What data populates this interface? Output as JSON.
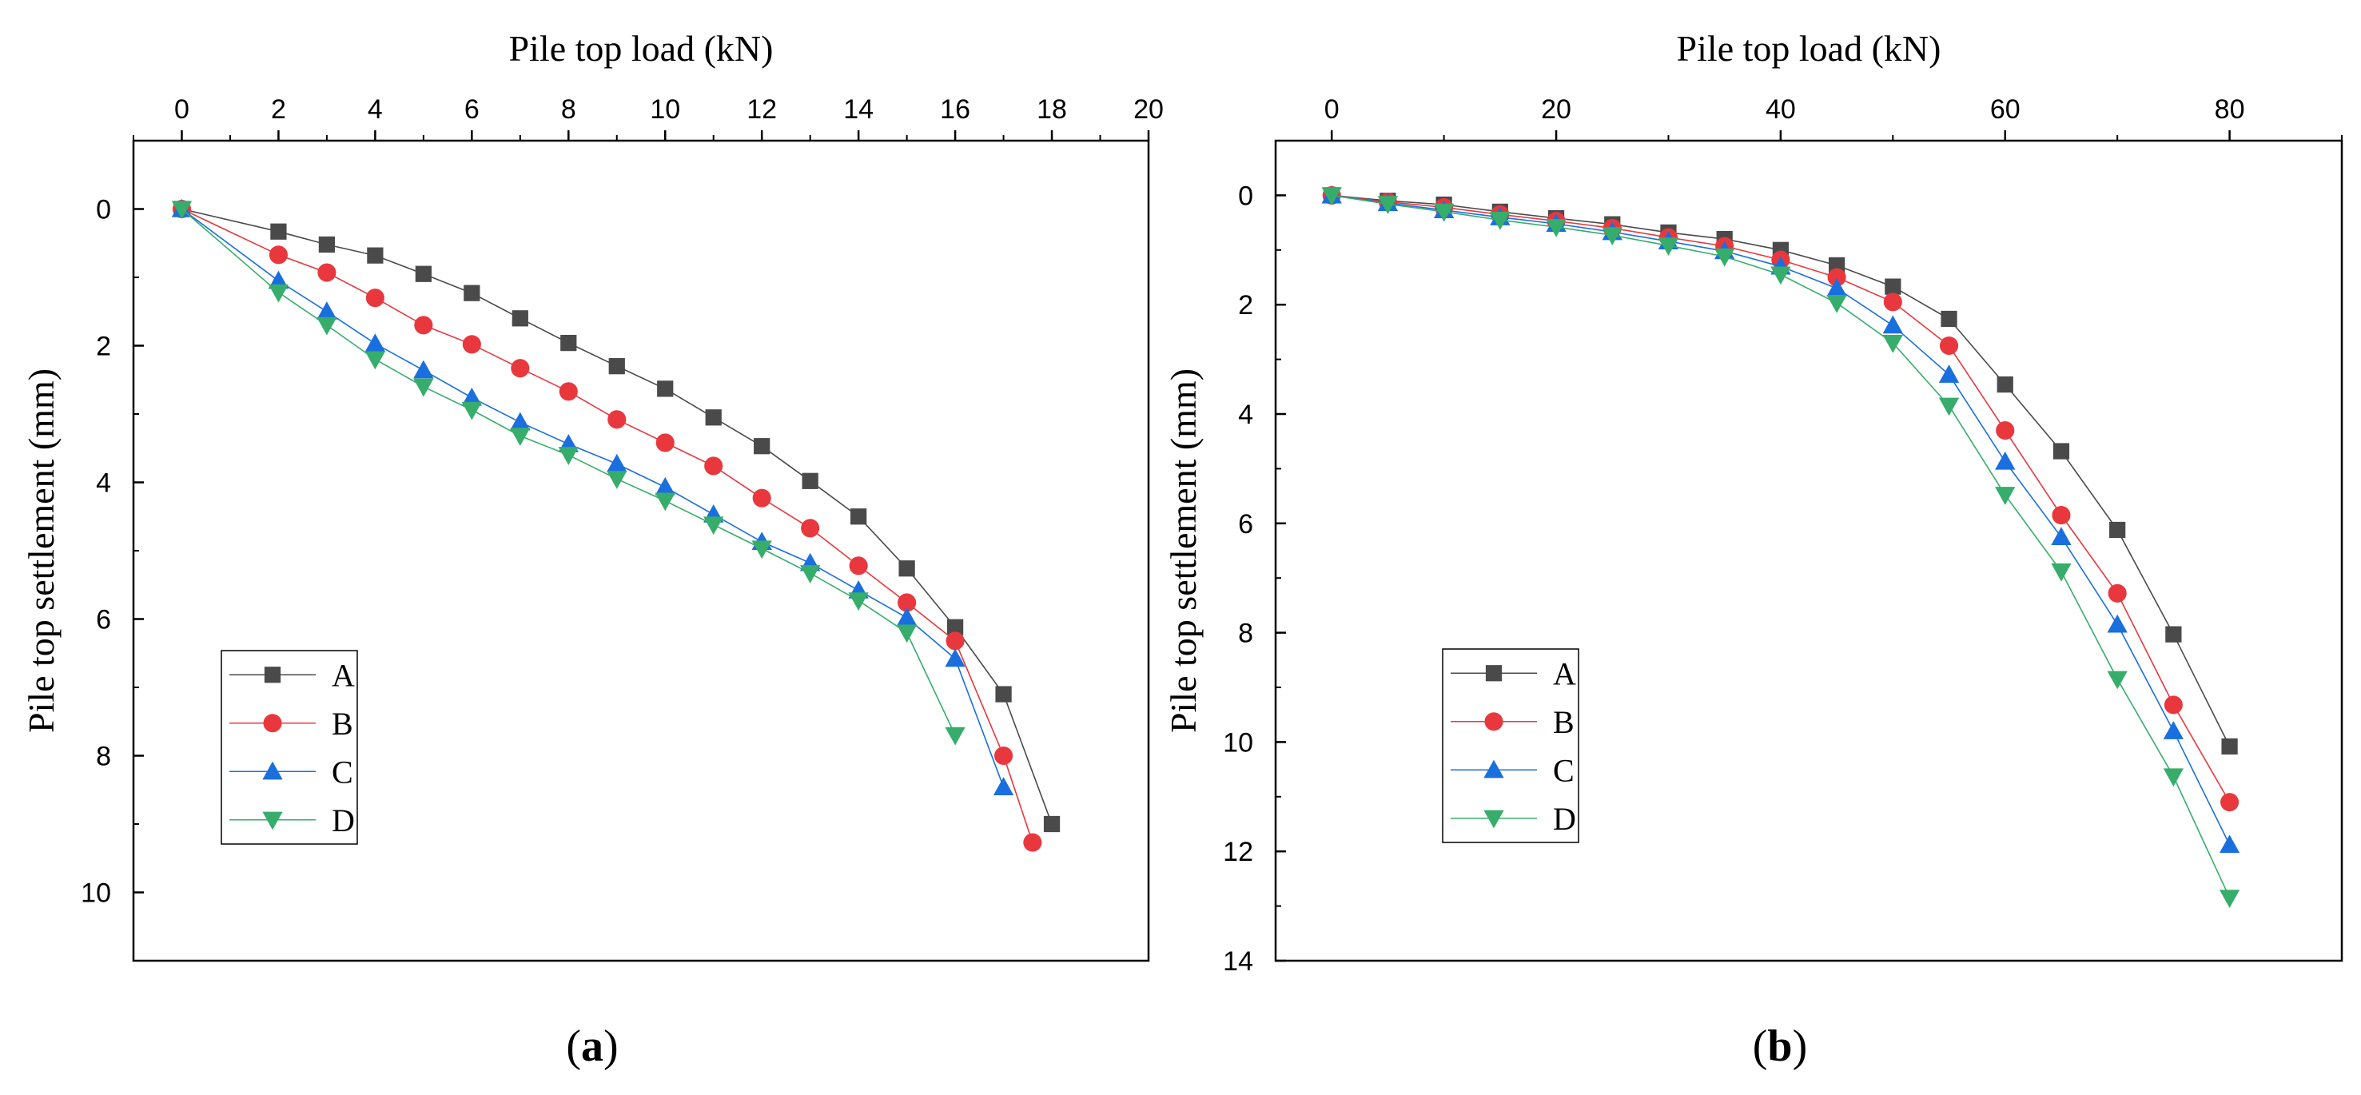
{
  "chart_data": [
    {
      "type": "line",
      "panel_label": "a",
      "xlabel": "Pile top load (kN)",
      "ylabel": "Pile top settlement (mm)",
      "xlim": [
        -1,
        20
      ],
      "ylim": [
        -1,
        11
      ],
      "x_axis_position": "top",
      "y_inverted": true,
      "xticks": [
        0,
        2,
        4,
        6,
        8,
        10,
        12,
        14,
        16,
        18,
        20
      ],
      "yticks": [
        0,
        2,
        4,
        6,
        8,
        10
      ],
      "x_minor_step": 1,
      "y_minor_step": 1,
      "legend_position": "bottom-left",
      "series": [
        {
          "name": "A",
          "marker": "square",
          "color": "#4a4a4a",
          "x": [
            0,
            2,
            3,
            4,
            5,
            6,
            7,
            8,
            9,
            10,
            11,
            12,
            13,
            14,
            15,
            16,
            17,
            18
          ],
          "y": [
            0,
            0.33,
            0.52,
            0.68,
            0.95,
            1.23,
            1.6,
            1.96,
            2.3,
            2.63,
            3.05,
            3.47,
            3.98,
            4.5,
            5.26,
            6.12,
            7.1,
            9.0
          ]
        },
        {
          "name": "B",
          "marker": "circle",
          "color": "#e8383d",
          "x": [
            0,
            2,
            3,
            4,
            5,
            6,
            7,
            8,
            9,
            10,
            11,
            12,
            13,
            14,
            15,
            16,
            17,
            17.6
          ],
          "y": [
            0,
            0.67,
            0.93,
            1.3,
            1.7,
            1.98,
            2.33,
            2.67,
            3.08,
            3.42,
            3.76,
            4.23,
            4.67,
            5.22,
            5.76,
            6.32,
            8.0,
            9.27
          ]
        },
        {
          "name": "C",
          "marker": "triangle-up",
          "color": "#1a6fdf",
          "x": [
            0,
            2,
            3,
            4,
            5,
            6,
            7,
            8,
            9,
            10,
            11,
            12,
            13,
            14,
            15,
            16,
            17
          ],
          "y": [
            0,
            1.05,
            1.5,
            1.97,
            2.36,
            2.76,
            3.12,
            3.44,
            3.73,
            4.07,
            4.47,
            4.87,
            5.18,
            5.58,
            5.98,
            6.58,
            8.46
          ]
        },
        {
          "name": "D",
          "marker": "triangle-down",
          "color": "#37ad6b",
          "x": [
            0,
            2,
            3,
            4,
            5,
            6,
            7,
            8,
            9,
            10,
            11,
            12,
            13,
            14,
            15,
            16
          ],
          "y": [
            0,
            1.22,
            1.7,
            2.2,
            2.6,
            2.94,
            3.32,
            3.6,
            3.95,
            4.27,
            4.62,
            4.97,
            5.33,
            5.73,
            6.2,
            7.7
          ]
        }
      ]
    },
    {
      "type": "line",
      "panel_label": "b",
      "xlabel": "Pile top load (kN)",
      "ylabel": "Pile top settlement (mm)",
      "xlim": [
        -5,
        90
      ],
      "ylim": [
        -1,
        14
      ],
      "x_axis_position": "top",
      "y_inverted": true,
      "xticks": [
        0,
        20,
        40,
        60,
        80
      ],
      "yticks": [
        0,
        2,
        4,
        6,
        8,
        10,
        12,
        14
      ],
      "x_minor_step": 10,
      "y_minor_step": 1,
      "legend_position": "bottom-left",
      "series": [
        {
          "name": "A",
          "marker": "square",
          "color": "#4a4a4a",
          "x": [
            0,
            5,
            10,
            15,
            20,
            25,
            30,
            35,
            40,
            45,
            50,
            55,
            60,
            65,
            70,
            75,
            80
          ],
          "y": [
            0,
            0.1,
            0.17,
            0.3,
            0.42,
            0.53,
            0.68,
            0.8,
            1.0,
            1.28,
            1.67,
            2.26,
            3.46,
            4.68,
            6.12,
            8.03,
            10.08
          ]
        },
        {
          "name": "B",
          "marker": "circle",
          "color": "#e8383d",
          "x": [
            0,
            5,
            10,
            15,
            20,
            25,
            30,
            35,
            40,
            45,
            50,
            55,
            60,
            65,
            70,
            75,
            80
          ],
          "y": [
            0,
            0.12,
            0.22,
            0.35,
            0.47,
            0.6,
            0.77,
            0.93,
            1.18,
            1.5,
            1.95,
            2.75,
            4.3,
            5.85,
            7.28,
            9.32,
            11.1
          ]
        },
        {
          "name": "C",
          "marker": "triangle-up",
          "color": "#1a6fdf",
          "x": [
            0,
            5,
            10,
            15,
            20,
            25,
            30,
            35,
            40,
            45,
            50,
            55,
            60,
            65,
            70,
            75,
            80
          ],
          "y": [
            0,
            0.14,
            0.27,
            0.4,
            0.52,
            0.67,
            0.84,
            1.02,
            1.3,
            1.7,
            2.38,
            3.28,
            4.87,
            6.25,
            7.85,
            9.8,
            11.88
          ]
        },
        {
          "name": "D",
          "marker": "triangle-down",
          "color": "#37ad6b",
          "x": [
            0,
            5,
            10,
            15,
            20,
            25,
            30,
            35,
            40,
            45,
            50,
            55,
            60,
            65,
            70,
            75,
            80
          ],
          "y": [
            0,
            0.16,
            0.3,
            0.45,
            0.58,
            0.73,
            0.92,
            1.12,
            1.45,
            1.97,
            2.7,
            3.85,
            5.48,
            6.88,
            8.85,
            10.63,
            12.85
          ]
        }
      ]
    }
  ]
}
